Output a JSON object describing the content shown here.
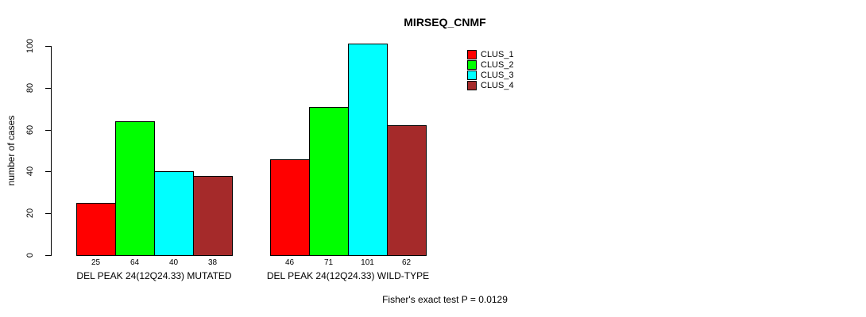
{
  "title": "MIRSEQ_CNMF",
  "footer": "Fisher's exact test P = 0.0129",
  "chart_data": {
    "type": "bar",
    "title": "MIRSEQ_CNMF",
    "xlabel": "",
    "ylabel": "number of cases",
    "categories": [
      "DEL PEAK 24(12Q24.33) MUTATED",
      "DEL PEAK 24(12Q24.33) WILD-TYPE"
    ],
    "series": [
      {
        "name": "CLUS_1",
        "color": "#ff0000",
        "values": [
          25,
          46
        ]
      },
      {
        "name": "CLUS_2",
        "color": "#00ff00",
        "values": [
          64,
          71
        ]
      },
      {
        "name": "CLUS_3",
        "color": "#00ffff",
        "values": [
          40,
          101
        ]
      },
      {
        "name": "CLUS_4",
        "color": "#a52a2a",
        "values": [
          38,
          62
        ]
      }
    ],
    "bar_value_labels": [
      [
        25,
        64,
        40,
        38
      ],
      [
        46,
        71,
        101,
        62
      ]
    ],
    "yticks": [
      0,
      20,
      40,
      60,
      80,
      100
    ],
    "ylim": [
      0,
      105
    ],
    "grid": false,
    "legend_position": "top-right",
    "legend_entries": [
      "CLUS_1",
      "CLUS_2",
      "CLUS_3",
      "CLUS_4"
    ],
    "annotation": "Fisher's exact test P = 0.0129"
  },
  "colors": {
    "clus_1": "#ff0000",
    "clus_2": "#00ff00",
    "clus_3": "#00ffff",
    "clus_4": "#a52a2a",
    "bar_border": "#000000",
    "text": "#000000",
    "background": "#ffffff"
  }
}
